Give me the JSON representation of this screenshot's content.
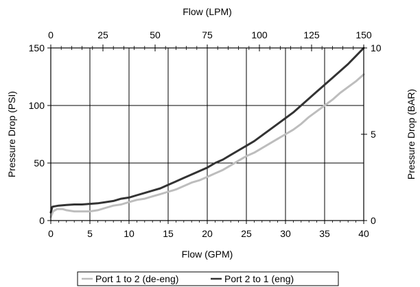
{
  "chart_data": {
    "type": "line",
    "title": "",
    "axes": {
      "bottom": {
        "label": "Flow (GPM)",
        "range": [
          0,
          40
        ],
        "ticks": [
          0,
          5,
          10,
          15,
          20,
          25,
          30,
          35,
          40
        ]
      },
      "top": {
        "label": "Flow (LPM)",
        "range": [
          0,
          150
        ],
        "ticks": [
          0,
          25,
          50,
          75,
          100,
          125,
          150
        ]
      },
      "left": {
        "label": "Pressure Drop (PSI)",
        "range": [
          0,
          150
        ],
        "ticks": [
          0,
          50,
          100,
          150
        ]
      },
      "right": {
        "label": "Pressure Drop (BAR)",
        "range": [
          0,
          10
        ],
        "ticks": [
          0,
          5,
          10
        ]
      }
    },
    "grid": true,
    "legend_position": "bottom",
    "series": [
      {
        "name": "Port 1 to 2 (de-eng)",
        "color": "#bdbdbd",
        "points": [
          [
            0,
            3
          ],
          [
            0.3,
            8
          ],
          [
            0.8,
            10
          ],
          [
            1.5,
            10
          ],
          [
            2,
            9
          ],
          [
            3,
            8
          ],
          [
            4,
            8
          ],
          [
            5,
            8
          ],
          [
            6,
            9
          ],
          [
            7,
            11
          ],
          [
            8,
            13
          ],
          [
            9,
            14
          ],
          [
            10,
            16
          ],
          [
            11,
            18
          ],
          [
            12,
            19
          ],
          [
            13,
            21
          ],
          [
            14,
            23
          ],
          [
            15,
            25
          ],
          [
            16,
            27
          ],
          [
            17,
            30
          ],
          [
            18,
            33
          ],
          [
            19,
            35
          ],
          [
            20,
            38
          ],
          [
            21,
            41
          ],
          [
            22,
            44
          ],
          [
            23,
            48
          ],
          [
            24,
            52
          ],
          [
            25,
            56
          ],
          [
            26,
            59
          ],
          [
            27,
            63
          ],
          [
            28,
            67
          ],
          [
            29,
            71
          ],
          [
            30,
            75
          ],
          [
            31,
            79
          ],
          [
            32,
            84
          ],
          [
            33,
            90
          ],
          [
            34,
            95
          ],
          [
            35,
            100
          ],
          [
            36,
            105
          ],
          [
            37,
            111
          ],
          [
            38,
            116
          ],
          [
            39,
            121
          ],
          [
            40,
            127
          ]
        ]
      },
      {
        "name": "Port 2 to 1 (eng)",
        "color": "#333333",
        "points": [
          [
            0,
            7
          ],
          [
            0.2,
            12
          ],
          [
            1,
            13
          ],
          [
            2,
            13.5
          ],
          [
            3,
            14
          ],
          [
            4,
            14
          ],
          [
            5,
            14.5
          ],
          [
            6,
            15
          ],
          [
            7,
            16
          ],
          [
            8,
            17
          ],
          [
            9,
            19
          ],
          [
            10,
            20
          ],
          [
            11,
            22
          ],
          [
            12,
            24
          ],
          [
            13,
            26
          ],
          [
            14,
            28
          ],
          [
            15,
            31
          ],
          [
            16,
            34
          ],
          [
            17,
            37
          ],
          [
            18,
            40
          ],
          [
            19,
            43
          ],
          [
            20,
            46
          ],
          [
            21,
            50
          ],
          [
            22,
            53
          ],
          [
            23,
            57
          ],
          [
            24,
            61
          ],
          [
            25,
            65
          ],
          [
            26,
            69
          ],
          [
            27,
            74
          ],
          [
            28,
            79
          ],
          [
            29,
            84
          ],
          [
            30,
            89
          ],
          [
            31,
            94
          ],
          [
            32,
            100
          ],
          [
            33,
            106
          ],
          [
            34,
            112
          ],
          [
            35,
            118
          ],
          [
            36,
            124
          ],
          [
            37,
            130
          ],
          [
            38,
            136
          ],
          [
            39,
            143
          ],
          [
            40,
            150
          ]
        ]
      }
    ]
  }
}
